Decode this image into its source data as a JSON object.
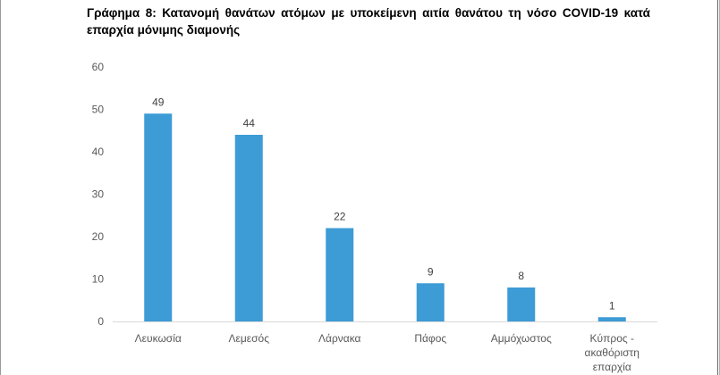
{
  "title": "Γράφημα 8: Κατανομή θανάτων ατόμων με υποκείμενη αιτία θανάτου τη νόσο COVID-19 κατά επαρχία μόνιμης διαμονής",
  "chart_data": {
    "type": "bar",
    "title": "Γράφημα 8: Κατανομή θανάτων ατόμων με υποκείμενη αιτία θανάτου τη νόσο COVID-19 κατά επαρχία μόνιμης διαμονής",
    "xlabel": "",
    "ylabel": "",
    "categories": [
      [
        "Λευκωσία"
      ],
      [
        "Λεμεσός"
      ],
      [
        "Λάρνακα"
      ],
      [
        "Πάφος"
      ],
      [
        "Αμμόχωστος"
      ],
      [
        "Κύπρος -",
        "ακαθόριστη",
        "επαρχία"
      ]
    ],
    "values": [
      49,
      44,
      22,
      9,
      8,
      1
    ],
    "ylim": [
      0,
      60
    ],
    "yticks": [
      0,
      10,
      20,
      30,
      40,
      50,
      60
    ],
    "grid": false,
    "legend": "none",
    "bar_color": "#3d9bd5",
    "axis_color": "#d9d9d9"
  }
}
